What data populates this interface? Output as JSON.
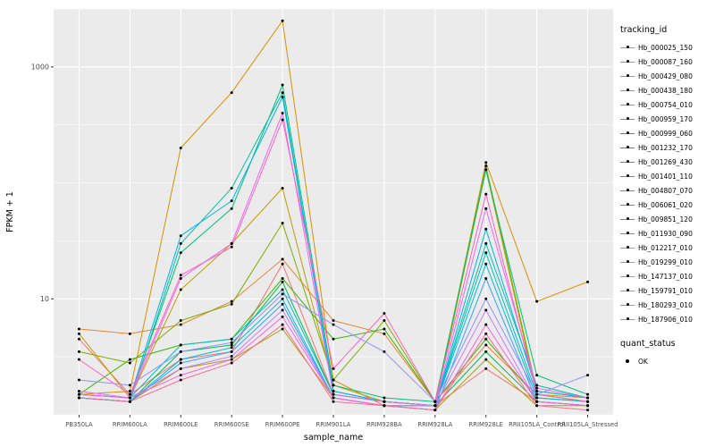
{
  "figure": {
    "background": "#ffffff",
    "panel_background": "#ebebeb",
    "gridline_color": "#ffffff",
    "point_color": "#000000"
  },
  "axes": {
    "xlabel": "sample_name",
    "ylabel": "FPKM + 1",
    "y_tick_labels": [
      "10",
      "1000"
    ],
    "y_tick_log10": [
      1,
      3
    ],
    "y_minor_log10": [
      0,
      0.5,
      1.5,
      2,
      2.5,
      3.5
    ],
    "y_range_log10": [
      0,
      3.5
    ]
  },
  "legend": {
    "tracking_title": "tracking_id",
    "quant_title": "quant_status",
    "quant_items": [
      "OK"
    ]
  },
  "chart_data": {
    "type": "line",
    "title": "",
    "xlabel": "sample_name",
    "ylabel": "FPKM + 1",
    "yscale": "log10",
    "ylim": [
      1,
      3162
    ],
    "yticks": [
      10,
      1000
    ],
    "legend_position": "right",
    "grid": true,
    "categories": [
      "PB350LA",
      "RRIM600LA",
      "RRIM600LE",
      "RRIM600SE",
      "RRIM600PE",
      "RRIM901LA",
      "RRIM928BA",
      "RRIM928LA",
      "RRIM928LE",
      "RRII105LA_Control",
      "RRII105LA_Stressed"
    ],
    "series": [
      {
        "name": "Hb_000025_150",
        "color": "#F8766D",
        "values": [
          4.5,
          1.5,
          3.0,
          3.5,
          20,
          1.5,
          1.3,
          1.2,
          2.5,
          1.3,
          1.2
        ]
      },
      {
        "name": "Hb_000087_160",
        "color": "#EA8331",
        "values": [
          5.5,
          5.0,
          6.0,
          9.5,
          22,
          6.5,
          5.0,
          1.3,
          4.0,
          1.5,
          1.3
        ]
      },
      {
        "name": "Hb_000429_080",
        "color": "#D89000",
        "values": [
          1.5,
          1.6,
          200,
          600,
          2500,
          2.0,
          1.2,
          1.2,
          150,
          9.5,
          14
        ]
      },
      {
        "name": "Hb_000438_180",
        "color": "#C09B00",
        "values": [
          5.0,
          1.4,
          12,
          30,
          90,
          1.8,
          1.3,
          1.2,
          130,
          1.5,
          1.4
        ]
      },
      {
        "name": "Hb_000754_010",
        "color": "#A3A500",
        "values": [
          1.4,
          1.3,
          2.5,
          3.0,
          5.5,
          1.4,
          1.2,
          1.1,
          3.0,
          1.2,
          1.2
        ]
      },
      {
        "name": "Hb_000959_170",
        "color": "#7CAE00",
        "values": [
          3.5,
          2.8,
          6.5,
          9.0,
          45,
          2.0,
          6.5,
          1.3,
          140,
          1.6,
          1.4
        ]
      },
      {
        "name": "Hb_000999_060",
        "color": "#39B600",
        "values": [
          1.5,
          3.0,
          4.0,
          4.5,
          15,
          4.5,
          5.5,
          1.3,
          4.5,
          1.4,
          1.3
        ]
      },
      {
        "name": "Hb_001232_170",
        "color": "#00BB4E",
        "values": [
          1.4,
          1.3,
          3.5,
          4.0,
          14,
          1.5,
          1.3,
          1.2,
          3.5,
          1.3,
          1.2
        ]
      },
      {
        "name": "Hb_001269_430",
        "color": "#00BF7D",
        "values": [
          1.5,
          1.4,
          25,
          60,
          700,
          1.8,
          1.4,
          1.3,
          130,
          2.2,
          1.5
        ]
      },
      {
        "name": "Hb_001401_110",
        "color": "#00C1A3",
        "values": [
          1.4,
          1.3,
          30,
          90,
          600,
          1.6,
          1.3,
          1.2,
          30,
          1.8,
          1.4
        ]
      },
      {
        "name": "Hb_004807_070",
        "color": "#00BFC4",
        "values": [
          1.5,
          1.4,
          4.0,
          4.5,
          12,
          1.5,
          1.3,
          1.2,
          25,
          1.5,
          1.3
        ]
      },
      {
        "name": "Hb_006061_020",
        "color": "#00BAE0",
        "values": [
          1.4,
          1.3,
          3.0,
          3.8,
          10,
          1.4,
          1.2,
          1.2,
          20,
          1.4,
          1.3
        ]
      },
      {
        "name": "Hb_009851_120",
        "color": "#00B0F6",
        "values": [
          1.5,
          1.4,
          35,
          70,
          550,
          1.6,
          1.3,
          1.2,
          40,
          1.6,
          1.4
        ]
      },
      {
        "name": "Hb_011930_090",
        "color": "#35A2FF",
        "values": [
          1.4,
          1.3,
          2.8,
          3.5,
          9,
          1.4,
          1.2,
          1.1,
          15,
          1.3,
          1.2
        ]
      },
      {
        "name": "Hb_012217_010",
        "color": "#9590FF",
        "values": [
          2.0,
          1.8,
          3.5,
          4.2,
          11,
          6.0,
          3.5,
          1.3,
          10,
          1.5,
          2.2
        ]
      },
      {
        "name": "Hb_019299_010",
        "color": "#C77CFF",
        "values": [
          1.5,
          1.4,
          2.5,
          3.2,
          8,
          1.4,
          1.2,
          1.2,
          8,
          1.3,
          1.2
        ]
      },
      {
        "name": "Hb_147137_010",
        "color": "#E76BF3",
        "values": [
          1.6,
          1.4,
          15,
          30,
          400,
          1.5,
          1.3,
          1.2,
          60,
          1.7,
          1.4
        ]
      },
      {
        "name": "Hb_159791_010",
        "color": "#FA62DB",
        "values": [
          1.5,
          1.4,
          2.2,
          3.0,
          7,
          1.4,
          1.2,
          1.1,
          6,
          1.3,
          1.2
        ]
      },
      {
        "name": "Hb_180293_010",
        "color": "#FF62BC",
        "values": [
          3.0,
          1.5,
          16,
          28,
          350,
          2.5,
          7.5,
          1.3,
          80,
          1.5,
          1.3
        ]
      },
      {
        "name": "Hb_187906_010",
        "color": "#FF6A98",
        "values": [
          1.4,
          1.3,
          2.0,
          2.8,
          6,
          1.3,
          1.2,
          1.1,
          5,
          1.2,
          1.1
        ]
      }
    ]
  }
}
